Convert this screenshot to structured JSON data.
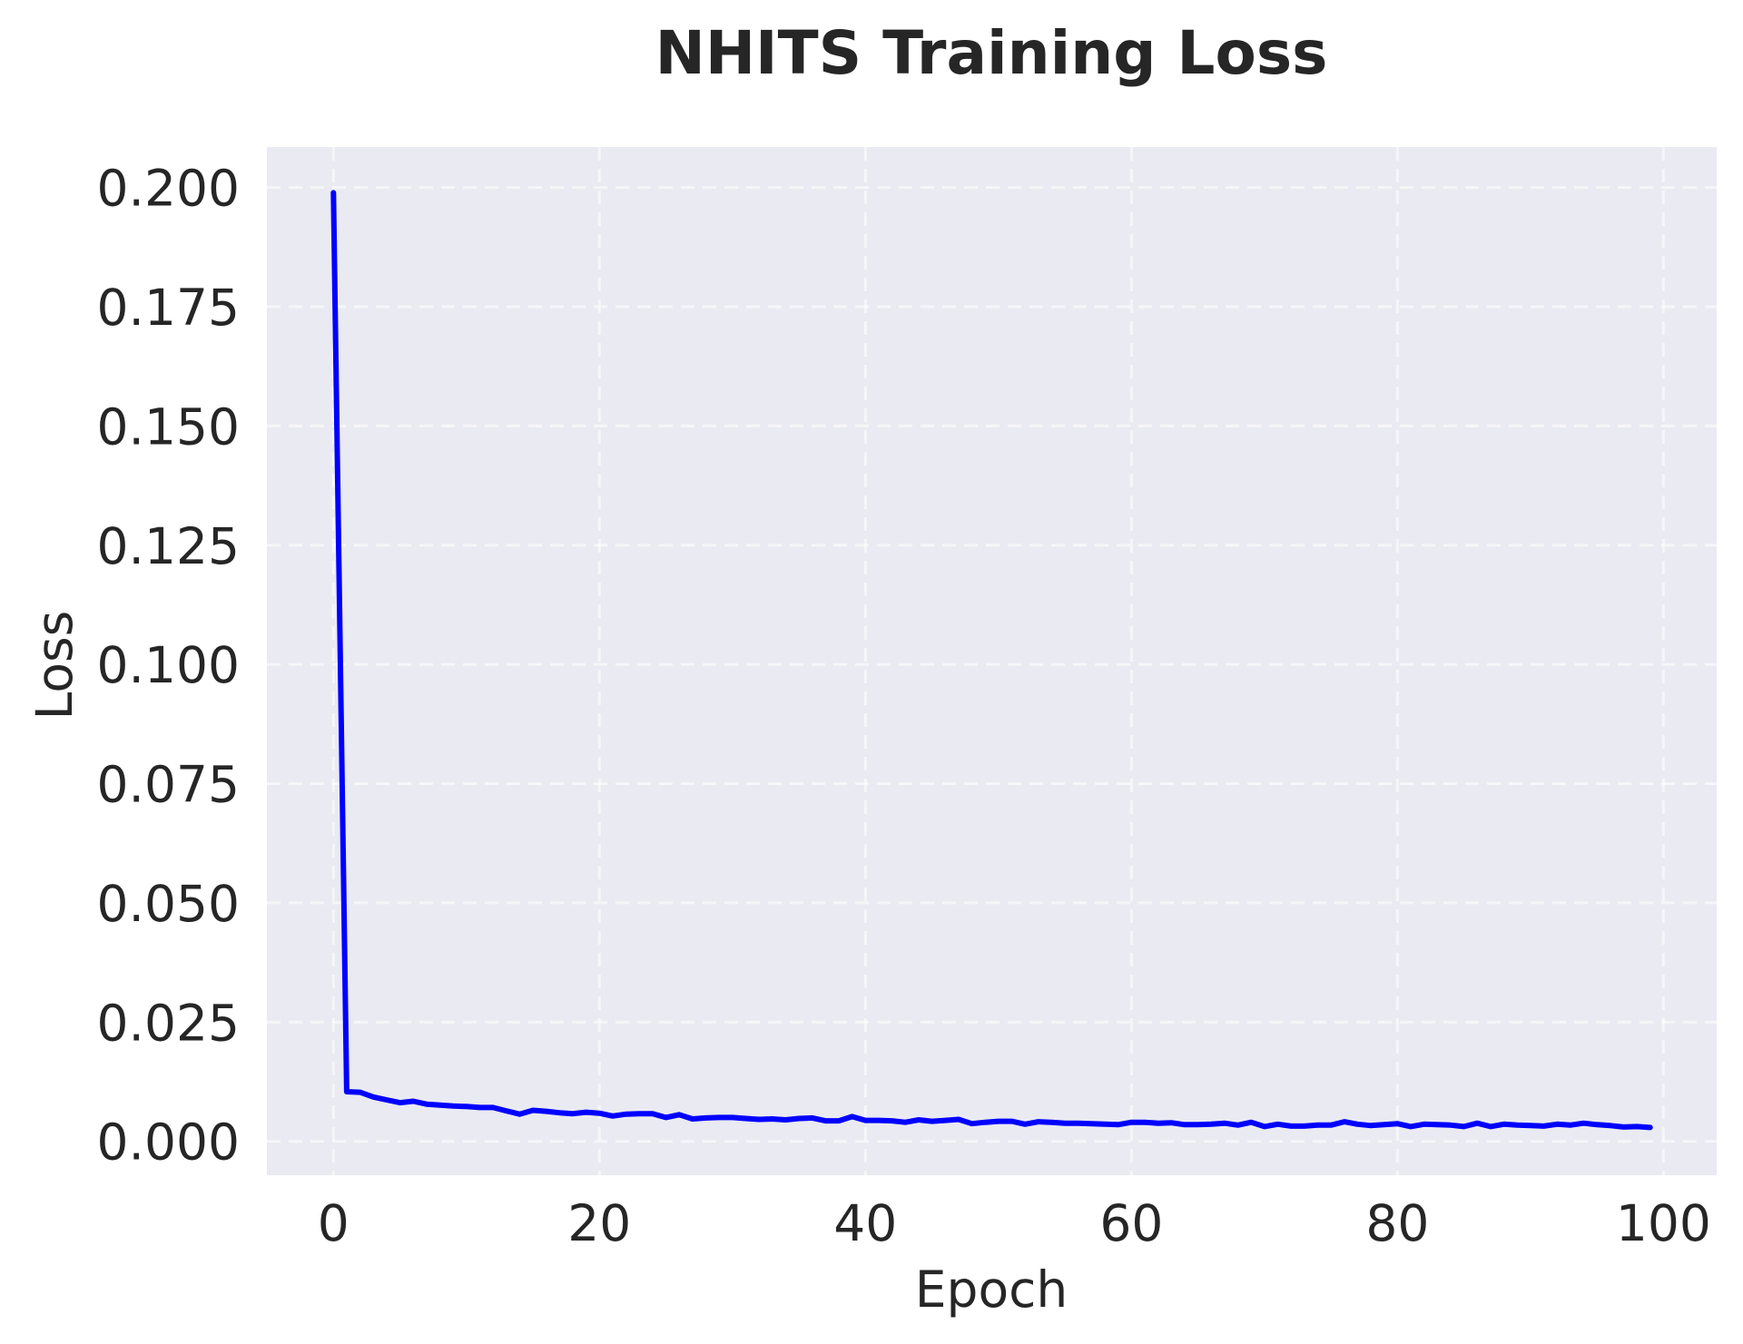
{
  "figure": {
    "background": "#FFFFFF",
    "plot_background": "#EAEAF2",
    "line_color": "#0000FF",
    "text_color": "#262626"
  },
  "chart_data": {
    "type": "line",
    "title": "NHITS Training Loss",
    "xlabel": "Epoch",
    "ylabel": "Loss",
    "xlim": [
      -5,
      104
    ],
    "ylim": [
      -0.0071,
      0.2085
    ],
    "xticks": [
      0,
      20,
      40,
      60,
      80,
      100
    ],
    "xtick_labels": [
      "0",
      "20",
      "40",
      "60",
      "80",
      "100"
    ],
    "yticks": [
      0.0,
      0.025,
      0.05,
      0.075,
      0.1,
      0.125,
      0.15,
      0.175,
      0.2
    ],
    "ytick_labels": [
      "0.000",
      "0.025",
      "0.050",
      "0.075",
      "0.100",
      "0.125",
      "0.150",
      "0.175",
      "0.200"
    ],
    "grid": true,
    "legend": null,
    "series": [
      {
        "name": "Training Loss",
        "color": "#0000FF",
        "x": [
          0,
          1,
          2,
          3,
          4,
          5,
          6,
          7,
          8,
          9,
          10,
          11,
          12,
          13,
          14,
          15,
          16,
          17,
          18,
          19,
          20,
          21,
          22,
          23,
          24,
          25,
          26,
          27,
          28,
          29,
          30,
          31,
          32,
          33,
          34,
          35,
          36,
          37,
          38,
          39,
          40,
          41,
          42,
          43,
          44,
          45,
          46,
          47,
          48,
          49,
          50,
          51,
          52,
          53,
          54,
          55,
          56,
          57,
          58,
          59,
          60,
          61,
          62,
          63,
          64,
          65,
          66,
          67,
          68,
          69,
          70,
          71,
          72,
          73,
          74,
          75,
          76,
          77,
          78,
          79,
          80,
          81,
          82,
          83,
          84,
          85,
          86,
          87,
          88,
          89,
          90,
          91,
          92,
          93,
          94,
          95,
          96,
          97,
          98,
          99
        ],
        "values": [
          0.1989,
          0.0104,
          0.0103,
          0.0093,
          0.0087,
          0.0081,
          0.0084,
          0.0078,
          0.0076,
          0.0074,
          0.0073,
          0.0071,
          0.0071,
          0.0064,
          0.0057,
          0.0065,
          0.0063,
          0.006,
          0.0058,
          0.0061,
          0.0059,
          0.0053,
          0.0057,
          0.0058,
          0.0058,
          0.005,
          0.0056,
          0.0047,
          0.0049,
          0.005,
          0.005,
          0.0048,
          0.0046,
          0.0047,
          0.0045,
          0.0048,
          0.0049,
          0.0043,
          0.0043,
          0.0052,
          0.0044,
          0.0044,
          0.0043,
          0.004,
          0.0045,
          0.0042,
          0.0044,
          0.0046,
          0.0037,
          0.004,
          0.0042,
          0.0042,
          0.0036,
          0.0041,
          0.004,
          0.0038,
          0.0038,
          0.0037,
          0.0036,
          0.0035,
          0.004,
          0.004,
          0.0038,
          0.0039,
          0.0035,
          0.0035,
          0.0036,
          0.0038,
          0.0034,
          0.004,
          0.0031,
          0.0036,
          0.0032,
          0.0032,
          0.0034,
          0.0034,
          0.0041,
          0.0036,
          0.0033,
          0.0035,
          0.0037,
          0.0031,
          0.0036,
          0.0035,
          0.0034,
          0.0031,
          0.0038,
          0.0031,
          0.0036,
          0.0034,
          0.0033,
          0.0032,
          0.0036,
          0.0034,
          0.0038,
          0.0035,
          0.0033,
          0.003,
          0.0031,
          0.0029
        ]
      }
    ]
  }
}
